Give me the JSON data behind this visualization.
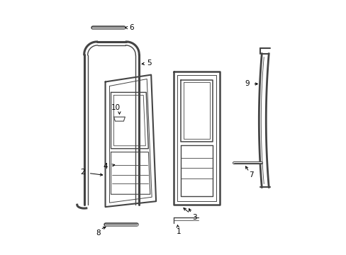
{
  "background_color": "#ffffff",
  "line_color": "#444444",
  "text_color": "#000000",
  "figsize": [
    4.89,
    3.6
  ],
  "dpi": 100
}
